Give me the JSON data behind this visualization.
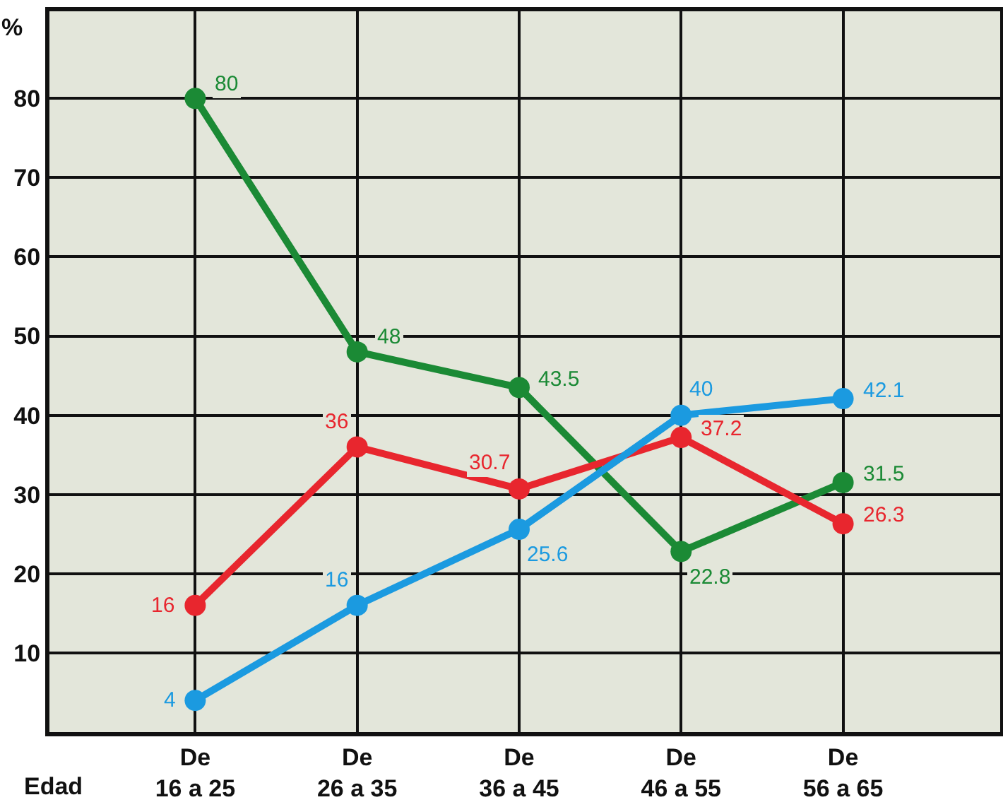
{
  "chart_data": {
    "type": "line",
    "xlabel": "Edad",
    "ylabel": "%",
    "categories": [
      "De\n16 a 25",
      "De\n26 a 35",
      "De\n36 a 45",
      "De\n46 a 55",
      "De\n56 a 65"
    ],
    "series": [
      {
        "color": "#1b8a35",
        "values": [
          80,
          48,
          43.5,
          22.8,
          31.5
        ]
      },
      {
        "color": "#e8262e",
        "values": [
          16,
          36,
          30.7,
          37.2,
          26.3
        ]
      },
      {
        "color": "#1b9ae0",
        "values": [
          4,
          16,
          25.6,
          40,
          42.1
        ]
      }
    ],
    "ylim": [
      0,
      91
    ],
    "yticks": [
      10,
      20,
      30,
      40,
      50,
      60,
      70,
      80
    ],
    "grid": true,
    "legend": false,
    "marker": "circle",
    "line_style": "solid",
    "data_labels": true
  }
}
